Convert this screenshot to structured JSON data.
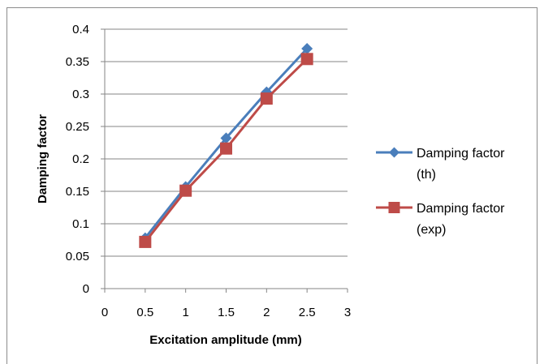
{
  "chart_data": {
    "type": "line",
    "title": "",
    "xlabel": "Excitation amplitude (mm)",
    "ylabel": "Damping factor",
    "xlim": [
      0,
      3
    ],
    "ylim": [
      0,
      0.4
    ],
    "x_ticks": [
      "0",
      "0.5",
      "1",
      "1.5",
      "2",
      "2.5",
      "3"
    ],
    "y_ticks": [
      "0",
      "0.05",
      "0.1",
      "0.15",
      "0.2",
      "0.25",
      "0.3",
      "0.35",
      "0.4"
    ],
    "grid": "horizontal",
    "legend_position": "right",
    "series": [
      {
        "name_line1": "Damping factor",
        "name_line2": "(th)",
        "marker": "diamond",
        "color": "#4a7ebb",
        "x": [
          0.5,
          1,
          1.5,
          2,
          2.5
        ],
        "y": [
          0.078,
          0.157,
          0.232,
          0.303,
          0.37
        ]
      },
      {
        "name_line1": "Damping factor",
        "name_line2": "(exp)",
        "marker": "square",
        "color": "#be4b48",
        "x": [
          0.5,
          1,
          1.5,
          2,
          2.5
        ],
        "y": [
          0.072,
          0.151,
          0.216,
          0.293,
          0.354
        ]
      }
    ]
  }
}
